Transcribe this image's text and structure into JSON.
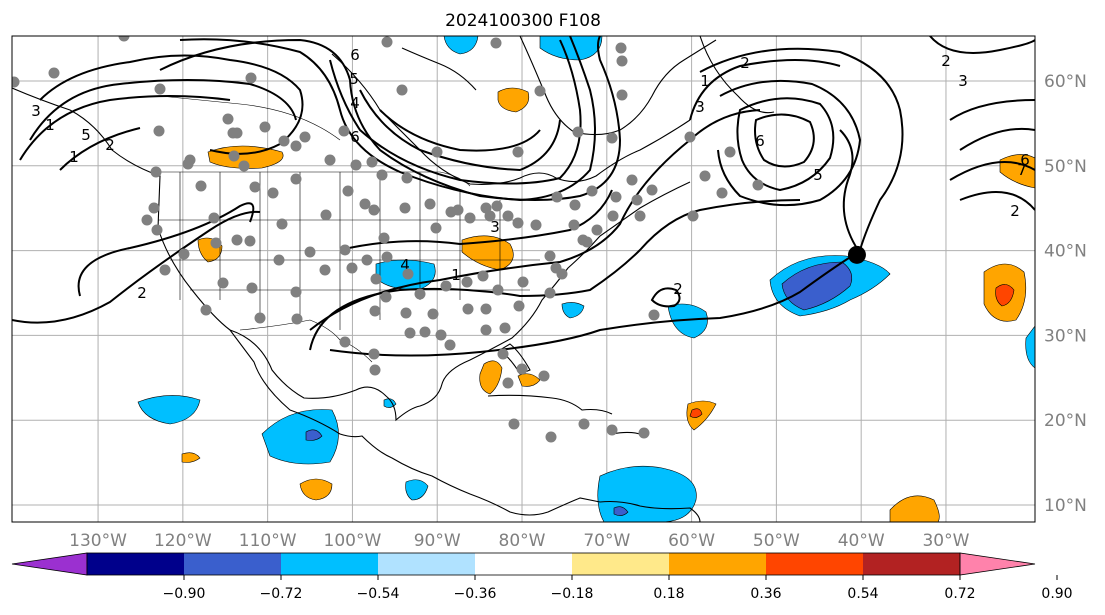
{
  "title": "2024100300 F108",
  "longitude_labels": [
    "130°W",
    "120°W",
    "110°W",
    "100°W",
    "90°W",
    "80°W",
    "70°W",
    "60°W",
    "50°W",
    "40°W",
    "30°W"
  ],
  "latitude_labels": [
    "60°N",
    "50°N",
    "40°N",
    "30°N",
    "20°N",
    "10°N"
  ],
  "colorbar": {
    "tick_labels": [
      "−0.90",
      "−0.72",
      "−0.54",
      "−0.36",
      "−0.18",
      "0.18",
      "0.36",
      "0.54",
      "0.72",
      "0.90"
    ],
    "colors": [
      "#9b30d0",
      "#00008b",
      "#3a5fcd",
      "#00bfff",
      "#b0e2ff",
      "#ffffff",
      "#ffe98a",
      "#ffa500",
      "#ff4500",
      "#b22222",
      "#ff82ab"
    ]
  },
  "contour_labels": [
    "1",
    "2",
    "3",
    "4",
    "5",
    "6",
    "1",
    "2",
    "3",
    "5",
    "6",
    "2",
    "1",
    "2",
    "3",
    "4",
    "6",
    "5",
    "2",
    "1",
    "2",
    "3",
    "1",
    "6",
    "7"
  ],
  "marker": {
    "lon": -40.5,
    "lat": 39.5
  }
}
